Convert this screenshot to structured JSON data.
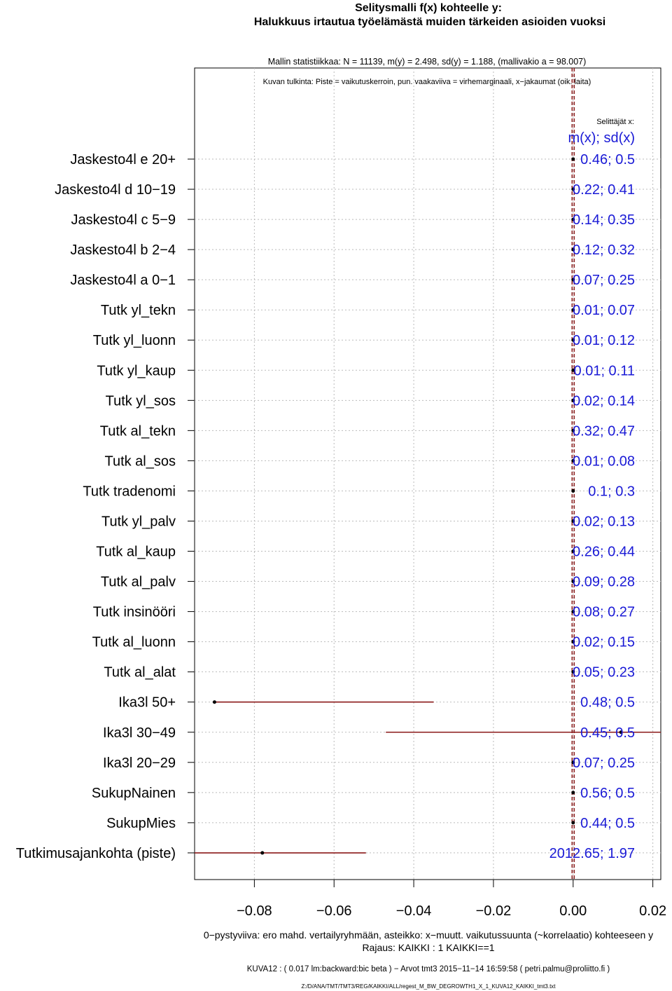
{
  "chart_data": {
    "type": "scatter",
    "title": "Selitysmalli f(x) kohteelle y:",
    "subtitle": "Halukkuus irtautua työelämästä muiden tärkeiden asioiden vuoksi",
    "model_stats": "Mallin statistiikkaa: N = 11139, m(y) = 2.498, sd(y) = 1.188, (mallivakio a = 98.007)",
    "interpretation": "Kuvan tulkinta: Piste = vaikutuskerroin, pun. vaakaviiva = virhemarginaali, x−jakaumat (oik. laita)",
    "stats_heading_small": "Selittäjät x:",
    "stats_heading": "m(x); sd(x)",
    "xlim": [
      -0.095,
      0.022
    ],
    "x_ticks": [
      "−0.08",
      "−0.06",
      "−0.04",
      "−0.02",
      "0.00",
      "0.02"
    ],
    "x_tick_values": [
      -0.08,
      -0.06,
      -0.04,
      -0.02,
      0.0,
      0.02
    ],
    "xlabel": "0−pystyviiva: ero mahd. vertailyryhmään, asteikko: x−muutt. vaikutussuunta (~korrelaatio) kohteeseen y",
    "restriction": "Rajaus: KAIKKI : 1  KAIKKI==1",
    "footer": "KUVA12 : ( 0.017 lm:backward:bic beta )  −  Arvot tmt3 2015−11−14 16:59:58 ( petri.palmu@proliitto.fi )",
    "path": "Z:/D/ANA/TMT/TMT3/REG/KAIKKI/ALL/regest_M_BW_DEGROWTH1_X_1_KUVA12_KAIKKI_tmt3.txt",
    "variables": [
      {
        "label": "Jaskesto4l e 20+",
        "stat": "0.46; 0.5",
        "est": 0.0,
        "lo": 0.0,
        "hi": 0.0
      },
      {
        "label": "Jaskesto4l d 10−19",
        "stat": "0.22; 0.41",
        "est": 0.0,
        "lo": 0.0,
        "hi": 0.0
      },
      {
        "label": "Jaskesto4l c 5−9",
        "stat": "0.14; 0.35",
        "est": 0.0,
        "lo": 0.0,
        "hi": 0.0
      },
      {
        "label": "Jaskesto4l b 2−4",
        "stat": "0.12; 0.32",
        "est": 0.0,
        "lo": 0.0,
        "hi": 0.0
      },
      {
        "label": "Jaskesto4l a 0−1",
        "stat": "0.07; 0.25",
        "est": 0.0,
        "lo": 0.0,
        "hi": 0.0
      },
      {
        "label": "Tutk yl_tekn",
        "stat": "0.01; 0.07",
        "est": 0.0,
        "lo": 0.0,
        "hi": 0.0
      },
      {
        "label": "Tutk yl_luonn",
        "stat": "0.01; 0.12",
        "est": 0.0,
        "lo": 0.0,
        "hi": 0.0
      },
      {
        "label": "Tutk yl_kaup",
        "stat": "0.01; 0.11",
        "est": 0.0,
        "lo": 0.0,
        "hi": 0.0
      },
      {
        "label": "Tutk yl_sos",
        "stat": "0.02; 0.14",
        "est": 0.0,
        "lo": 0.0,
        "hi": 0.0
      },
      {
        "label": "Tutk al_tekn",
        "stat": "0.32; 0.47",
        "est": 0.0,
        "lo": 0.0,
        "hi": 0.0
      },
      {
        "label": "Tutk al_sos",
        "stat": "0.01; 0.08",
        "est": 0.0,
        "lo": 0.0,
        "hi": 0.0
      },
      {
        "label": "Tutk tradenomi",
        "stat": "0.1; 0.3",
        "est": 0.0,
        "lo": 0.0,
        "hi": 0.0
      },
      {
        "label": "Tutk yl_palv",
        "stat": "0.02; 0.13",
        "est": 0.0,
        "lo": 0.0,
        "hi": 0.0
      },
      {
        "label": "Tutk al_kaup",
        "stat": "0.26; 0.44",
        "est": 0.0,
        "lo": 0.0,
        "hi": 0.0
      },
      {
        "label": "Tutk al_palv",
        "stat": "0.09; 0.28",
        "est": 0.0,
        "lo": 0.0,
        "hi": 0.0
      },
      {
        "label": "Tutk insinööri",
        "stat": "0.08; 0.27",
        "est": 0.0,
        "lo": 0.0,
        "hi": 0.0
      },
      {
        "label": "Tutk al_luonn",
        "stat": "0.02; 0.15",
        "est": 0.0,
        "lo": 0.0,
        "hi": 0.0
      },
      {
        "label": "Tutk al_alat",
        "stat": "0.05; 0.23",
        "est": 0.0,
        "lo": 0.0,
        "hi": 0.0
      },
      {
        "label": "Ika3l 50+",
        "stat": "0.48; 0.5",
        "est": -0.09,
        "lo": -0.09,
        "hi": -0.035
      },
      {
        "label": "Ika3l 30−49",
        "stat": "0.45; 0.5",
        "est": 0.012,
        "lo": -0.047,
        "hi": 0.022
      },
      {
        "label": "Ika3l 20−29",
        "stat": "0.07; 0.25",
        "est": 0.0,
        "lo": 0.0,
        "hi": 0.0
      },
      {
        "label": "SukupNainen",
        "stat": "0.56; 0.5",
        "est": 0.0,
        "lo": 0.0,
        "hi": 0.0
      },
      {
        "label": "SukupMies",
        "stat": "0.44; 0.5",
        "est": 0.0,
        "lo": 0.0,
        "hi": 0.0
      },
      {
        "label": "Tutkimusajankohta (piste)",
        "stat": "2012.65; 1.97",
        "est": -0.078,
        "lo": -0.095,
        "hi": -0.052
      }
    ],
    "colors": {
      "ci": "#8b1a1a",
      "stat": "#1a1ad6",
      "zero": "#8b1a1a",
      "grid": "#bbbbbb"
    }
  }
}
